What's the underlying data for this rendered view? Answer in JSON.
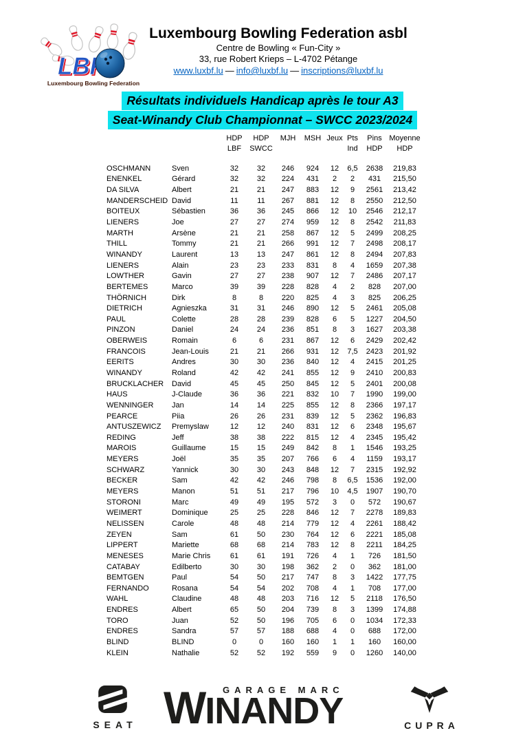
{
  "header": {
    "org_name": "Luxembourg Bowling Federation asbl",
    "address_line1": "Centre de Bowling « Fun-City »",
    "address_line2": "33, rue Robert Krieps – L-4702 Pétange",
    "links": {
      "web": "www.luxbf.lu",
      "email": "info@luxbf.lu",
      "inscriptions": "inscriptions@luxbf.lu"
    },
    "link_separator": "—",
    "link_color": "#0563c1",
    "logo": {
      "lbf_text": "LBF",
      "caption": "Luxembourg Bowling Federation"
    }
  },
  "titles": {
    "line1": "Résultats individuels Handicap après le tour A3",
    "line2": "Seat-Winandy Club Championnat – SWCC 2023/2024",
    "highlight_color": "#0fe3ee"
  },
  "table": {
    "columns": [
      "HDP\nLBF",
      "HDP\nSWCC",
      "MJH",
      "MSH",
      "Jeux",
      "Pts\nInd",
      "Pins\nHDP",
      "Moyenne\nHDP"
    ],
    "rows": [
      [
        "OSCHMANN",
        "Sven",
        "32",
        "32",
        "246",
        "924",
        "12",
        "6,5",
        "2638",
        "219,83"
      ],
      [
        "ENENKEL",
        "Gérard",
        "32",
        "32",
        "224",
        "431",
        "2",
        "2",
        "431",
        "215,50"
      ],
      [
        "DA SILVA",
        "Albert",
        "21",
        "21",
        "247",
        "883",
        "12",
        "9",
        "2561",
        "213,42"
      ],
      [
        "MANDERSCHEID",
        "David",
        "11",
        "11",
        "267",
        "881",
        "12",
        "8",
        "2550",
        "212,50"
      ],
      [
        "BOITEUX",
        "Sébastien",
        "36",
        "36",
        "245",
        "866",
        "12",
        "10",
        "2546",
        "212,17"
      ],
      [
        "LIENERS",
        "Joe",
        "27",
        "27",
        "274",
        "959",
        "12",
        "8",
        "2542",
        "211,83"
      ],
      [
        "MARTH",
        "Arsène",
        "21",
        "21",
        "258",
        "867",
        "12",
        "5",
        "2499",
        "208,25"
      ],
      [
        "THILL",
        "Tommy",
        "21",
        "21",
        "266",
        "991",
        "12",
        "7",
        "2498",
        "208,17"
      ],
      [
        "WINANDY",
        "Laurent",
        "13",
        "13",
        "247",
        "861",
        "12",
        "8",
        "2494",
        "207,83"
      ],
      [
        "LIENERS",
        "Alain",
        "23",
        "23",
        "233",
        "831",
        "8",
        "4",
        "1659",
        "207,38"
      ],
      [
        "LOWTHER",
        "Gavin",
        "27",
        "27",
        "238",
        "907",
        "12",
        "7",
        "2486",
        "207,17"
      ],
      [
        "BERTEMES",
        "Marco",
        "39",
        "39",
        "228",
        "828",
        "4",
        "2",
        "828",
        "207,00"
      ],
      [
        "THÖRNICH",
        "Dirk",
        "8",
        "8",
        "220",
        "825",
        "4",
        "3",
        "825",
        "206,25"
      ],
      [
        "DIETRICH",
        "Agnieszka",
        "31",
        "31",
        "246",
        "890",
        "12",
        "5",
        "2461",
        "205,08"
      ],
      [
        "PAUL",
        "Colette",
        "28",
        "28",
        "239",
        "828",
        "6",
        "5",
        "1227",
        "204,50"
      ],
      [
        "PINZON",
        "Daniel",
        "24",
        "24",
        "236",
        "851",
        "8",
        "3",
        "1627",
        "203,38"
      ],
      [
        "OBERWEIS",
        "Romain",
        "6",
        "6",
        "231",
        "867",
        "12",
        "6",
        "2429",
        "202,42"
      ],
      [
        "FRANCOIS",
        "Jean-Louis",
        "21",
        "21",
        "266",
        "931",
        "12",
        "7,5",
        "2423",
        "201,92"
      ],
      [
        "EERITS",
        "Andres",
        "30",
        "30",
        "236",
        "840",
        "12",
        "4",
        "2415",
        "201,25"
      ],
      [
        "WINANDY",
        "Roland",
        "42",
        "42",
        "241",
        "855",
        "12",
        "9",
        "2410",
        "200,83"
      ],
      [
        "BRUCKLACHER",
        "David",
        "45",
        "45",
        "250",
        "845",
        "12",
        "5",
        "2401",
        "200,08"
      ],
      [
        "HAUS",
        "J-Claude",
        "36",
        "36",
        "221",
        "832",
        "10",
        "7",
        "1990",
        "199,00"
      ],
      [
        "WENNINGER",
        "Jan",
        "14",
        "14",
        "225",
        "855",
        "12",
        "8",
        "2366",
        "197,17"
      ],
      [
        "PEARCE",
        "Piia",
        "26",
        "26",
        "231",
        "839",
        "12",
        "5",
        "2362",
        "196,83"
      ],
      [
        "ANTUSZEWICZ",
        "Premyslaw",
        "12",
        "12",
        "240",
        "831",
        "12",
        "6",
        "2348",
        "195,67"
      ],
      [
        "REDING",
        "Jeff",
        "38",
        "38",
        "222",
        "815",
        "12",
        "4",
        "2345",
        "195,42"
      ],
      [
        "MAROIS",
        "Guillaume",
        "15",
        "15",
        "249",
        "842",
        "8",
        "1",
        "1546",
        "193,25"
      ],
      [
        "MEYERS",
        "Joël",
        "35",
        "35",
        "207",
        "766",
        "6",
        "4",
        "1159",
        "193,17"
      ],
      [
        "SCHWARZ",
        "Yannick",
        "30",
        "30",
        "243",
        "848",
        "12",
        "7",
        "2315",
        "192,92"
      ],
      [
        "BECKER",
        "Sam",
        "42",
        "42",
        "246",
        "798",
        "8",
        "6,5",
        "1536",
        "192,00"
      ],
      [
        "MEYERS",
        "Manon",
        "51",
        "51",
        "217",
        "796",
        "10",
        "4,5",
        "1907",
        "190,70"
      ],
      [
        "STORONI",
        "Marc",
        "49",
        "49",
        "195",
        "572",
        "3",
        "0",
        "572",
        "190,67"
      ],
      [
        "WEIMERT",
        "Dominique",
        "25",
        "25",
        "228",
        "846",
        "12",
        "7",
        "2278",
        "189,83"
      ],
      [
        "NELISSEN",
        "Carole",
        "48",
        "48",
        "214",
        "779",
        "12",
        "4",
        "2261",
        "188,42"
      ],
      [
        "ZEYEN",
        "Sam",
        "61",
        "50",
        "230",
        "764",
        "12",
        "6",
        "2221",
        "185,08"
      ],
      [
        "LIPPERT",
        "Mariette",
        "68",
        "68",
        "214",
        "783",
        "12",
        "8",
        "2211",
        "184,25"
      ],
      [
        "MENESES",
        "Marie Chris",
        "61",
        "61",
        "191",
        "726",
        "4",
        "1",
        "726",
        "181,50"
      ],
      [
        "CATABAY",
        "Edilberto",
        "30",
        "30",
        "198",
        "362",
        "2",
        "0",
        "362",
        "181,00"
      ],
      [
        "BEMTGEN",
        "Paul",
        "54",
        "50",
        "217",
        "747",
        "8",
        "3",
        "1422",
        "177,75"
      ],
      [
        "FERNANDO",
        "Rosana",
        "54",
        "54",
        "202",
        "708",
        "4",
        "1",
        "708",
        "177,00"
      ],
      [
        "WAHL",
        "Claudine",
        "48",
        "48",
        "203",
        "716",
        "12",
        "5",
        "2118",
        "176,50"
      ],
      [
        "ENDRES",
        "Albert",
        "65",
        "50",
        "204",
        "739",
        "8",
        "3",
        "1399",
        "174,88"
      ],
      [
        "TORO",
        "Juan",
        "52",
        "50",
        "196",
        "705",
        "6",
        "0",
        "1034",
        "172,33"
      ],
      [
        "ENDRES",
        "Sandra",
        "57",
        "57",
        "188",
        "688",
        "4",
        "0",
        "688",
        "172,00"
      ],
      [
        "BLIND",
        "BLIND",
        "0",
        "0",
        "160",
        "160",
        "1",
        "1",
        "160",
        "160,00"
      ],
      [
        "KLEIN",
        "Nathalie",
        "52",
        "52",
        "192",
        "559",
        "9",
        "0",
        "1260",
        "140,00"
      ]
    ]
  },
  "footer": {
    "seat_label": "SEAT",
    "garage_line": "GARAGE MARC",
    "winandy_first_letter": "W",
    "winandy_rest": "INANDY",
    "cupra_label": "CUPRA",
    "logo_color": "#1d1d1b"
  }
}
